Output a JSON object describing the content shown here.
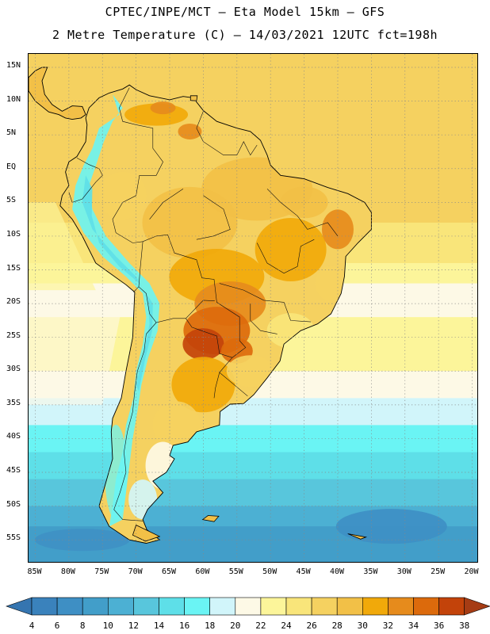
{
  "header": {
    "line1": "CPTEC/INPE/MCT –  Eta Model 15km – GFS",
    "line2": "2 Metre Temperature (C) – 14/03/2021 12UTC fct=198h"
  },
  "map": {
    "lat_labels": [
      "15N",
      "10N",
      "5N",
      "EQ",
      "5S",
      "10S",
      "15S",
      "20S",
      "25S",
      "30S",
      "35S",
      "40S",
      "45S",
      "50S",
      "55S"
    ],
    "lon_labels": [
      "85W",
      "80W",
      "75W",
      "70W",
      "65W",
      "60W",
      "55W",
      "50W",
      "45W",
      "40W",
      "35W",
      "30W",
      "25W",
      "20W"
    ],
    "bounds": {
      "west": -86,
      "east": -19,
      "north": 17,
      "south": -58.5
    },
    "grid_step_deg": 5
  },
  "colorbar": {
    "labels": [
      "4",
      "6",
      "8",
      "10",
      "12",
      "14",
      "16",
      "18",
      "20",
      "22",
      "24",
      "26",
      "28",
      "30",
      "32",
      "34",
      "36",
      "38"
    ],
    "colors": {
      "below": "#3575b0",
      "c4": "#3a82bc",
      "c6": "#3e8fc4",
      "c8": "#429ec9",
      "c10": "#4cb0d3",
      "c12": "#58c6dc",
      "c14": "#5edfe8",
      "c16": "#6af4f4",
      "c18": "#d1f5fa",
      "c20": "#fdf9e6",
      "c22": "#fcf59a",
      "c24": "#f9e57a",
      "c26": "#f5d160",
      "c28": "#f2c047",
      "c30": "#f1a90a",
      "c32": "#e68b1c",
      "c34": "#dc6a0c",
      "c36": "#c3430a",
      "above": "#a63c14"
    }
  }
}
